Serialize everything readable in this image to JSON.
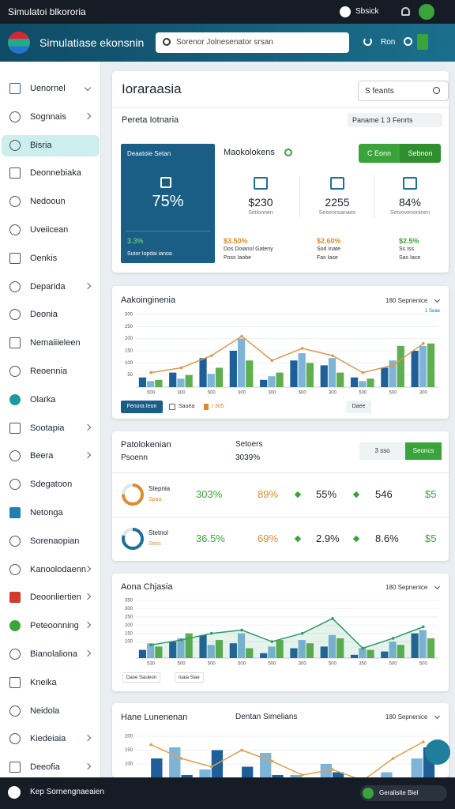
{
  "status_bar": {
    "title": "Simulatoi blkororia",
    "account": "Sbsick"
  },
  "header": {
    "title": "Simulatiase ekonsnin",
    "search_placeholder": "Sorenor Jolnesenator srsan",
    "action": "Ron"
  },
  "sidebar": {
    "items": [
      {
        "label": "Uenornel",
        "chevron": "down"
      },
      {
        "label": "Sognnais",
        "chevron": "right"
      },
      {
        "label": "Bisria",
        "active": true
      },
      {
        "label": "Deonnebiaka"
      },
      {
        "label": "Nedooun"
      },
      {
        "label": "Uveiicean"
      },
      {
        "label": "Oenkis"
      },
      {
        "label": "Deparida",
        "chevron": "right"
      },
      {
        "label": "Deonia"
      },
      {
        "label": "Nemaiiieleen"
      },
      {
        "label": "Reoennia"
      },
      {
        "label": "Olarka"
      },
      {
        "label": "Sootapia",
        "chevron": "right"
      },
      {
        "label": "Beera",
        "chevron": "right"
      },
      {
        "label": "Sdegatoon"
      },
      {
        "label": "Netonga"
      },
      {
        "label": "Sorenaopian"
      },
      {
        "label": "Kanoolodaenn",
        "chevron": "right"
      },
      {
        "label": "Deoonliertien",
        "chevron": "right"
      },
      {
        "label": "Peteoonning",
        "chevron": "right"
      },
      {
        "label": "Bianolaliona",
        "chevron": "right"
      },
      {
        "label": "Kneika"
      },
      {
        "label": "Neidola"
      },
      {
        "label": "Kiedeiaia",
        "chevron": "right"
      },
      {
        "label": "Deeofia",
        "chevron": "right"
      }
    ]
  },
  "overview": {
    "title": "Ioraraasia",
    "search": "S feants",
    "subtitle": "Pereta Iotnaria",
    "filter": "Paname 1 3 Fenrts",
    "tile": {
      "label": "Deaatoie Setan",
      "value": "75%",
      "change": "3.3%",
      "note": "Sutor Iopdai ianoa"
    },
    "section": "Maokolokens",
    "buttons": [
      "C Eonn",
      "Sebnon"
    ],
    "stats": [
      {
        "value": "$230",
        "label": "Setlonnen",
        "change": "$3.50%",
        "change_color": "#e08a2e",
        "notes": [
          "Dos Doianol Gateny",
          "Poss Iaobe"
        ]
      },
      {
        "value": "2255",
        "label": "Seeeonsanaes",
        "change": "$2.60%",
        "change_color": "#e08a2e",
        "notes": [
          "Sod Inate",
          "Fas Iase"
        ]
      },
      {
        "value": "84%",
        "label": "Setvovenoninen",
        "change": "$2.5%",
        "change_color": "#3aa43a",
        "notes": [
          "Ss Iss",
          "Sas Iace"
        ]
      }
    ]
  },
  "activity_chart": {
    "type": "bar",
    "title": "Aakoinginenia",
    "filter": "180 Sepnenice",
    "note": "1 Seae",
    "legend": [
      "Fenora Ieon",
      "Sauea",
      "I 305",
      "Daee"
    ],
    "ylim": [
      0,
      300
    ],
    "yticks": [
      50,
      100,
      150,
      200,
      250,
      300
    ],
    "categories": [
      "500",
      "300",
      "500",
      "300",
      "300",
      "500",
      "300",
      "500",
      "500",
      "300"
    ],
    "series": [
      {
        "type": "bar",
        "color": "#1f5f99",
        "values": [
          40,
          60,
          120,
          150,
          30,
          110,
          90,
          40,
          80,
          150
        ]
      },
      {
        "type": "bar",
        "color": "#7fb4d9",
        "values": [
          25,
          35,
          55,
          200,
          45,
          140,
          120,
          25,
          110,
          170
        ]
      },
      {
        "type": "bar",
        "color": "#5fae4f",
        "values": [
          30,
          50,
          80,
          110,
          60,
          100,
          60,
          35,
          170,
          180
        ]
      },
      {
        "type": "line",
        "color": "#d99a4e",
        "values": [
          60,
          80,
          130,
          210,
          110,
          160,
          130,
          60,
          90,
          180
        ]
      }
    ]
  },
  "performance": {
    "title": "Patolokenian",
    "subtitle": "Psoenn",
    "column": "Setoers",
    "column_sub": "3039%",
    "toggle": [
      "3 sso",
      "Seoncs"
    ],
    "rows": [
      {
        "name": "Stepnia",
        "sub": "Spaa",
        "donut": 75,
        "donut_color": "#e08a2e",
        "cells": [
          "303%",
          "89%",
          "55%",
          "546",
          "$5"
        ]
      },
      {
        "name": "Stetnol",
        "sub": "Seoc",
        "donut": 80,
        "donut_color": "#1f6f9a",
        "cells": [
          "36.5%",
          "69%",
          "2.9%",
          "8.6%",
          "$5"
        ]
      }
    ],
    "cell_colors": [
      "#3aa43a",
      "#e08a2e",
      "#1c2430",
      "#1c2430",
      "#3aa43a"
    ]
  },
  "area_chart": {
    "type": "bar",
    "title": "Aona Chjasia",
    "filter": "180 Sepnenice",
    "legend": [
      "Daoe Sauieon",
      "Ioaia Siae"
    ],
    "ylim": [
      0,
      350
    ],
    "yticks": [
      100,
      150,
      200,
      250,
      300,
      350
    ],
    "categories": [
      "530",
      "500",
      "500",
      "500",
      "500",
      "300",
      "500",
      "350",
      "500",
      "500"
    ],
    "series": [
      {
        "type": "bar",
        "color": "#1f5f99",
        "values": [
          50,
          100,
          140,
          90,
          30,
          60,
          70,
          20,
          40,
          150
        ]
      },
      {
        "type": "bar",
        "color": "#7fb4d9",
        "values": [
          90,
          120,
          80,
          150,
          70,
          110,
          140,
          60,
          100,
          170
        ]
      },
      {
        "type": "bar",
        "color": "#5fae4f",
        "values": [
          70,
          150,
          110,
          60,
          110,
          90,
          120,
          50,
          80,
          120
        ]
      },
      {
        "type": "line",
        "color": "#2e9a6a",
        "area": true,
        "values": [
          80,
          110,
          150,
          170,
          100,
          150,
          240,
          60,
          120,
          190
        ]
      }
    ]
  },
  "trend_chart": {
    "type": "bar",
    "title": "Hane Lunenenan",
    "subtitle": "Dentan Simelians",
    "filter": "180 Sepnenice",
    "ylim": [
      0,
      220
    ],
    "yticks": [
      100,
      150,
      200
    ],
    "categories": [
      null,
      null,
      null,
      null,
      null,
      null,
      null,
      null,
      null,
      null
    ],
    "series": [
      {
        "type": "bar",
        "color": "#7fb4d9",
        "values": [
          40,
          160,
          80,
          50,
          140,
          60,
          100,
          30,
          70,
          120
        ]
      },
      {
        "type": "bar",
        "color": "#1f5f99",
        "values": [
          120,
          60,
          150,
          90,
          60,
          40,
          70,
          20,
          50,
          160
        ]
      },
      {
        "type": "line",
        "color": "#e0a04a",
        "values": [
          170,
          120,
          90,
          150,
          110,
          60,
          80,
          40,
          120,
          180
        ]
      }
    ]
  },
  "footer": {
    "text": "Kep Sornengnaeaien",
    "status": "Geralisite Biel"
  }
}
